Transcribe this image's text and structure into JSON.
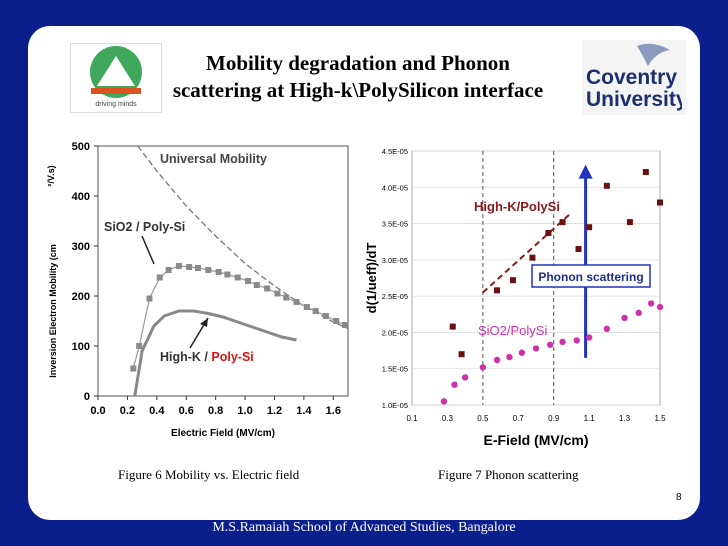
{
  "slide": {
    "title_line1": "Mobility degradation and Phonon",
    "title_line2": "scattering at High-k\\PolySilicon interface",
    "footer": "M.S.Ramaiah School of Advanced Studies, Bangalore",
    "page_number": "8",
    "logo_left_text": "driving minds",
    "logo_right_line1": "Coventry",
    "logo_right_line2": "University"
  },
  "figures": {
    "fig6_caption": "Figure 6 Mobility vs. Electric field",
    "fig7_caption": "Figure  7 Phonon scattering"
  },
  "colors": {
    "background": "#0b1f8c",
    "series_highk": "#6b1010",
    "series_sio2": "#cc33aa",
    "arrow": "#2233bb"
  },
  "chart_data": [
    {
      "type": "line",
      "xlabel": "Electric Field (MV/cm)",
      "ylabel": "Inversion Electron Mobility (cm",
      "ylabel_unit": "²/V.s)",
      "xlim": [
        0,
        1.7
      ],
      "ylim": [
        0,
        500
      ],
      "xticks": [
        0.0,
        0.2,
        0.4,
        0.6,
        0.8,
        1.0,
        1.2,
        1.4,
        1.6
      ],
      "xtick_labels": [
        "0.0",
        "0.2",
        "0.4",
        "0.6",
        "0.8",
        "1.0",
        "1.2",
        "1.4",
        "1.6"
      ],
      "yticks": [
        0,
        100,
        200,
        300,
        400,
        500
      ],
      "ytick_labels": [
        "0",
        "100",
        "200",
        "300",
        "400",
        "500"
      ],
      "annotations": {
        "universal": "Universal Mobility",
        "sio2": "SiO2 / Poly-Si",
        "highk_a": "High-K / ",
        "highk_b": "Poly-Si"
      },
      "series": [
        {
          "name": "Universal Mobility",
          "style": "dashed",
          "x": [
            0.27,
            0.4,
            0.6,
            0.8,
            1.0,
            1.2,
            1.4,
            1.6,
            1.7
          ],
          "y": [
            500,
            450,
            380,
            320,
            265,
            220,
            180,
            148,
            135
          ]
        },
        {
          "name": "SiO2 / Poly-Si",
          "style": "markers",
          "x": [
            0.24,
            0.28,
            0.35,
            0.42,
            0.48,
            0.55,
            0.62,
            0.68,
            0.75,
            0.82,
            0.88,
            0.95,
            1.02,
            1.08,
            1.15,
            1.22,
            1.28,
            1.35,
            1.42,
            1.48,
            1.55,
            1.62,
            1.68
          ],
          "y": [
            55,
            100,
            195,
            237,
            252,
            260,
            258,
            256,
            252,
            248,
            243,
            237,
            230,
            222,
            215,
            205,
            197,
            188,
            178,
            170,
            160,
            150,
            142
          ]
        },
        {
          "name": "High-K / Poly-Si",
          "style": "solid",
          "x": [
            0.25,
            0.3,
            0.38,
            0.45,
            0.55,
            0.65,
            0.75,
            0.85,
            0.95,
            1.05,
            1.15,
            1.25,
            1.35
          ],
          "y": [
            0,
            90,
            140,
            160,
            170,
            170,
            165,
            158,
            148,
            138,
            128,
            118,
            112
          ]
        }
      ]
    },
    {
      "type": "scatter",
      "xlabel": "E-Field (MV/cm)",
      "ylabel": "d(1/ueff)/dT",
      "xlim": [
        0.1,
        1.5
      ],
      "ylim": [
        1e-05,
        4.5e-05
      ],
      "xticks": [
        0.1,
        0.3,
        0.5,
        0.7,
        0.9,
        1.1,
        1.3,
        1.5
      ],
      "xtick_labels": [
        "0.1",
        "0.3",
        "0.5",
        "0.7",
        "0.9",
        "1.1",
        "1.3",
        "1.5"
      ],
      "yticks": [
        1e-05,
        1.5e-05,
        2e-05,
        2.5e-05,
        3e-05,
        3.5e-05,
        4e-05,
        4.5e-05
      ],
      "ytick_labels": [
        "1.0E-05",
        "1.5E-05",
        "2.0E-05",
        "2.5E-05",
        "3.0E-05",
        "3.5E-05",
        "4.0E-05",
        "4.5E-05"
      ],
      "annotations": {
        "highk": "High-K/PolySi",
        "sio2": "SiO2/PolySi",
        "phonon": "Phonon scattering"
      },
      "series": [
        {
          "name": "High-K/PolySi",
          "x": [
            0.33,
            0.38,
            0.58,
            0.67,
            0.78,
            0.87,
            0.95,
            1.04,
            1.1,
            1.2,
            1.33,
            1.42,
            1.5
          ],
          "y": [
            2.08e-05,
            1.7e-05,
            2.58e-05,
            2.72e-05,
            3.03e-05,
            3.37e-05,
            3.52e-05,
            3.15e-05,
            3.45e-05,
            4.02e-05,
            3.52e-05,
            4.21e-05,
            3.79e-05
          ]
        },
        {
          "name": "SiO2/PolySi",
          "x": [
            0.28,
            0.34,
            0.4,
            0.5,
            0.58,
            0.65,
            0.72,
            0.8,
            0.88,
            0.95,
            1.03,
            1.1,
            1.2,
            1.3,
            1.38,
            1.45,
            1.5
          ],
          "y": [
            1.05e-05,
            1.28e-05,
            1.38e-05,
            1.52e-05,
            1.62e-05,
            1.66e-05,
            1.72e-05,
            1.78e-05,
            1.83e-05,
            1.87e-05,
            1.89e-05,
            1.93e-05,
            2.05e-05,
            2.2e-05,
            2.27e-05,
            2.4e-05,
            2.35e-05
          ]
        }
      ]
    }
  ]
}
